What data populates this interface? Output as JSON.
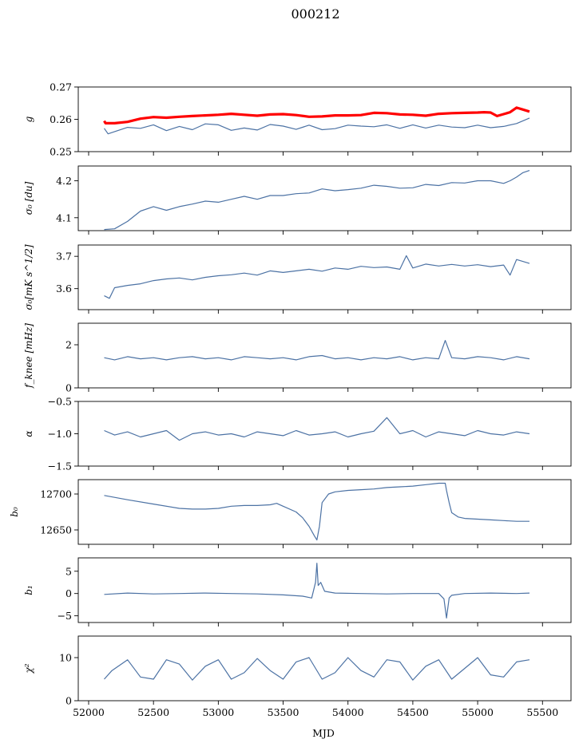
{
  "figure": {
    "title": "000212",
    "xlabel": "MJD",
    "x_ticks": [
      52000,
      52500,
      53000,
      53500,
      54000,
      54500,
      55000,
      55500
    ],
    "xlim": [
      51920,
      55720
    ]
  },
  "colors": {
    "series": "#4c72a4",
    "model": "#ff0000"
  },
  "chart_data": [
    {
      "type": "line",
      "ylabel": "g",
      "ylim": [
        0.25,
        0.27
      ],
      "y_ticks": [
        0.25,
        0.26,
        0.27
      ],
      "series": [
        {
          "color": "#ff0000",
          "x": [
            52120,
            52130,
            52200,
            52300,
            52400,
            52500,
            52600,
            52700,
            52800,
            52900,
            53000,
            53100,
            53200,
            53300,
            53400,
            53500,
            53600,
            53700,
            53800,
            53900,
            54000,
            54100,
            54200,
            54300,
            54400,
            54500,
            54600,
            54700,
            54800,
            54900,
            55000,
            55050,
            55100,
            55150,
            55200,
            55250,
            55300,
            55350,
            55400
          ],
          "y": [
            0.2595,
            0.2588,
            0.2588,
            0.2592,
            0.2602,
            0.2607,
            0.2605,
            0.2608,
            0.261,
            0.2612,
            0.2614,
            0.2617,
            0.2614,
            0.2611,
            0.2615,
            0.2616,
            0.2613,
            0.2608,
            0.2609,
            0.2612,
            0.2612,
            0.2613,
            0.262,
            0.2619,
            0.2615,
            0.2614,
            0.2611,
            0.2617,
            0.2619,
            0.262,
            0.2621,
            0.2622,
            0.2621,
            0.261,
            0.2616,
            0.2622,
            0.2636,
            0.263,
            0.2624
          ]
        },
        {
          "color": "#4c72a4",
          "x": [
            52120,
            52150,
            52200,
            52300,
            52400,
            52500,
            52600,
            52700,
            52800,
            52900,
            53000,
            53100,
            53200,
            53300,
            53400,
            53500,
            53600,
            53700,
            53800,
            53900,
            54000,
            54100,
            54200,
            54300,
            54400,
            54500,
            54600,
            54700,
            54800,
            54900,
            55000,
            55100,
            55200,
            55300,
            55400
          ],
          "y": [
            0.2572,
            0.2555,
            0.2562,
            0.2575,
            0.2572,
            0.2583,
            0.2565,
            0.2578,
            0.2568,
            0.2586,
            0.2583,
            0.2566,
            0.2573,
            0.2567,
            0.2584,
            0.2579,
            0.2569,
            0.2582,
            0.2568,
            0.2571,
            0.2582,
            0.2579,
            0.2577,
            0.2583,
            0.2572,
            0.2583,
            0.2573,
            0.2582,
            0.2576,
            0.2574,
            0.2582,
            0.2574,
            0.2578,
            0.2587,
            0.2604
          ]
        }
      ]
    },
    {
      "type": "line",
      "ylabel": "σ₀ [du]",
      "ylim": [
        4.065,
        4.24
      ],
      "y_ticks": [
        4.1,
        4.2
      ],
      "y_tick_labels": [
        "4.1",
        "4.2"
      ],
      "series": [
        {
          "color": "#4c72a4",
          "x": [
            52120,
            52200,
            52300,
            52400,
            52500,
            52600,
            52700,
            52800,
            52900,
            53000,
            53100,
            53200,
            53300,
            53400,
            53500,
            53600,
            53700,
            53800,
            53900,
            54000,
            54100,
            54200,
            54300,
            54400,
            54500,
            54600,
            54700,
            54800,
            54900,
            55000,
            55100,
            55200,
            55250,
            55300,
            55350,
            55400
          ],
          "y": [
            4.068,
            4.07,
            4.09,
            4.118,
            4.13,
            4.12,
            4.13,
            4.137,
            4.145,
            4.142,
            4.15,
            4.158,
            4.15,
            4.16,
            4.16,
            4.165,
            4.167,
            4.178,
            4.173,
            4.176,
            4.18,
            4.188,
            4.185,
            4.18,
            4.181,
            4.19,
            4.187,
            4.195,
            4.194,
            4.2,
            4.2,
            4.193,
            4.2,
            4.21,
            4.222,
            4.228
          ]
        }
      ]
    },
    {
      "type": "line",
      "ylabel": "σ₀[mK s^1/2]",
      "ylim": [
        3.535,
        3.735
      ],
      "y_ticks": [
        3.6,
        3.7
      ],
      "y_tick_labels": [
        "3.6",
        "3.7"
      ],
      "series": [
        {
          "color": "#4c72a4",
          "x": [
            52120,
            52160,
            52200,
            52300,
            52400,
            52500,
            52600,
            52700,
            52800,
            52900,
            53000,
            53100,
            53200,
            53300,
            53400,
            53500,
            53600,
            53700,
            53800,
            53900,
            54000,
            54100,
            54200,
            54300,
            54400,
            54450,
            54500,
            54600,
            54700,
            54800,
            54900,
            55000,
            55100,
            55200,
            55250,
            55300,
            55400
          ],
          "y": [
            3.578,
            3.57,
            3.603,
            3.61,
            3.615,
            3.625,
            3.63,
            3.633,
            3.627,
            3.635,
            3.64,
            3.643,
            3.648,
            3.642,
            3.655,
            3.65,
            3.655,
            3.66,
            3.654,
            3.664,
            3.66,
            3.669,
            3.665,
            3.667,
            3.66,
            3.702,
            3.664,
            3.676,
            3.67,
            3.675,
            3.67,
            3.674,
            3.668,
            3.673,
            3.642,
            3.69,
            3.678
          ]
        }
      ]
    },
    {
      "type": "line",
      "ylabel": "f_knee [mHz]",
      "ylim": [
        0,
        3
      ],
      "y_ticks": [
        0,
        2
      ],
      "series": [
        {
          "color": "#4c72a4",
          "x": [
            52120,
            52200,
            52300,
            52400,
            52500,
            52600,
            52700,
            52800,
            52900,
            53000,
            53100,
            53200,
            53300,
            53400,
            53500,
            53600,
            53700,
            53800,
            53900,
            54000,
            54100,
            54200,
            54300,
            54400,
            54500,
            54600,
            54700,
            54750,
            54800,
            54900,
            55000,
            55100,
            55200,
            55300,
            55400
          ],
          "y": [
            1.4,
            1.3,
            1.45,
            1.35,
            1.4,
            1.3,
            1.4,
            1.45,
            1.35,
            1.4,
            1.3,
            1.45,
            1.4,
            1.35,
            1.4,
            1.3,
            1.45,
            1.5,
            1.35,
            1.4,
            1.3,
            1.4,
            1.35,
            1.45,
            1.3,
            1.4,
            1.35,
            2.2,
            1.4,
            1.35,
            1.45,
            1.4,
            1.3,
            1.45,
            1.35
          ]
        }
      ]
    },
    {
      "type": "line",
      "ylabel": "α",
      "ylim": [
        -1.5,
        -0.5
      ],
      "y_ticks": [
        -1.5,
        -1.0,
        -0.5
      ],
      "y_tick_labels": [
        "−1.5",
        "−1.0",
        "−0.5"
      ],
      "series": [
        {
          "color": "#4c72a4",
          "x": [
            52120,
            52200,
            52300,
            52400,
            52500,
            52600,
            52700,
            52800,
            52900,
            53000,
            53100,
            53200,
            53300,
            53400,
            53500,
            53600,
            53700,
            53800,
            53900,
            54000,
            54100,
            54200,
            54300,
            54400,
            54500,
            54600,
            54700,
            54800,
            54900,
            55000,
            55100,
            55200,
            55300,
            55400
          ],
          "y": [
            -0.95,
            -1.02,
            -0.97,
            -1.05,
            -1.0,
            -0.95,
            -1.1,
            -1.0,
            -0.97,
            -1.02,
            -1.0,
            -1.05,
            -0.97,
            -1.0,
            -1.03,
            -0.95,
            -1.02,
            -1.0,
            -0.97,
            -1.05,
            -1.0,
            -0.96,
            -0.75,
            -1.0,
            -0.95,
            -1.05,
            -0.97,
            -1.0,
            -1.03,
            -0.95,
            -1.0,
            -1.02,
            -0.97,
            -1.0
          ]
        }
      ]
    },
    {
      "type": "line",
      "ylabel": "b₀",
      "ylim": [
        12630,
        12720
      ],
      "y_ticks": [
        12650,
        12700
      ],
      "series": [
        {
          "color": "#4c72a4",
          "x": [
            52120,
            52300,
            52500,
            52700,
            52800,
            52900,
            53000,
            53100,
            53200,
            53300,
            53400,
            53450,
            53500,
            53600,
            53650,
            53700,
            53740,
            53760,
            53780,
            53800,
            53850,
            53900,
            54000,
            54100,
            54200,
            54300,
            54400,
            54500,
            54600,
            54700,
            54750,
            54760,
            54780,
            54800,
            54850,
            54900,
            55000,
            55100,
            55200,
            55300,
            55400
          ],
          "y": [
            12698,
            12692,
            12686,
            12680,
            12679,
            12679,
            12680,
            12683,
            12684,
            12684,
            12685,
            12687,
            12683,
            12675,
            12667,
            12655,
            12642,
            12636,
            12655,
            12688,
            12700,
            12703,
            12705,
            12706,
            12707,
            12709,
            12710,
            12711,
            12713,
            12715,
            12715,
            12705,
            12688,
            12674,
            12668,
            12666,
            12665,
            12664,
            12663,
            12662,
            12662
          ]
        }
      ]
    },
    {
      "type": "line",
      "ylabel": "b₁",
      "ylim": [
        -6.5,
        8
      ],
      "y_ticks": [
        -5,
        0,
        5
      ],
      "y_tick_labels": [
        "−5",
        "0",
        "5"
      ],
      "series": [
        {
          "color": "#4c72a4",
          "x": [
            52120,
            52300,
            52500,
            52700,
            52900,
            53100,
            53300,
            53500,
            53650,
            53720,
            53750,
            53760,
            53770,
            53790,
            53820,
            53900,
            54100,
            54300,
            54500,
            54700,
            54740,
            54760,
            54780,
            54800,
            54900,
            55100,
            55300,
            55400
          ],
          "y": [
            -0.2,
            0.1,
            -0.1,
            0.0,
            0.1,
            0.0,
            -0.1,
            -0.3,
            -0.6,
            -1.0,
            2.5,
            6.8,
            1.8,
            2.5,
            0.5,
            0.1,
            0.0,
            -0.1,
            0.0,
            0.0,
            -1.2,
            -5.5,
            -1.0,
            -0.4,
            0.0,
            0.1,
            0.0,
            0.1
          ]
        }
      ]
    },
    {
      "type": "line",
      "ylabel": "χ²",
      "ylim": [
        0,
        15
      ],
      "y_ticks": [
        0,
        10
      ],
      "series": [
        {
          "color": "#4c72a4",
          "x": [
            52120,
            52180,
            52300,
            52400,
            52500,
            52600,
            52700,
            52800,
            52900,
            53000,
            53100,
            53200,
            53300,
            53400,
            53500,
            53600,
            53700,
            53800,
            53900,
            54000,
            54100,
            54200,
            54300,
            54400,
            54500,
            54600,
            54700,
            54800,
            54900,
            55000,
            55100,
            55200,
            55300,
            55400
          ],
          "y": [
            5.0,
            7.0,
            9.5,
            5.5,
            5.0,
            9.5,
            8.5,
            4.8,
            8.0,
            9.5,
            5.0,
            6.5,
            9.8,
            7.0,
            5.0,
            9.0,
            10.0,
            5.0,
            6.5,
            10.0,
            7.0,
            5.5,
            9.5,
            9.0,
            4.8,
            8.0,
            9.5,
            5.0,
            7.5,
            10.0,
            6.0,
            5.5,
            9.0,
            9.5
          ]
        }
      ]
    }
  ]
}
